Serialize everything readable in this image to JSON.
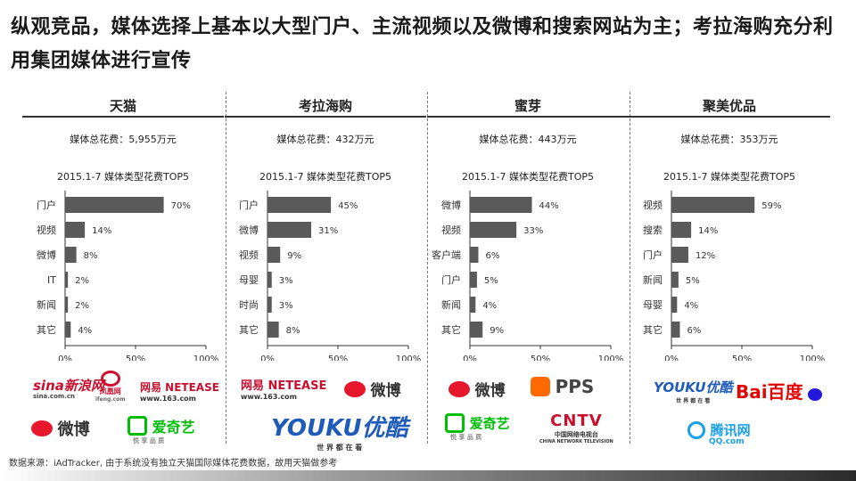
{
  "title": "纵观竞品，媒体选择上基本以大型门户、主流视频以及微博和搜索网站为主；考拉海购充分利用集团媒体进行宣传",
  "chart_title": "2015.1-7 媒体类型花费TOP5",
  "chart_data": [
    {
      "type": "bar",
      "name": "天猫",
      "total": "媒体总花费：5,955万元",
      "title": "2015.1-7 媒体类型花费TOP5",
      "categories": [
        "门户",
        "视频",
        "微博",
        "IT",
        "新闻",
        "其它"
      ],
      "values": [
        70,
        14,
        8,
        2,
        2,
        4
      ],
      "value_labels": [
        "70%",
        "14%",
        "8%",
        "2%",
        "2%",
        "4%"
      ],
      "xlim": [
        0,
        100
      ],
      "ticks": [
        "0%",
        "50%",
        "100%"
      ],
      "grid": false
    },
    {
      "type": "bar",
      "name": "考拉海购",
      "total": "媒体总花费：432万元",
      "title": "2015.1-7 媒体类型花费TOP5",
      "categories": [
        "门户",
        "微博",
        "视频",
        "母婴",
        "时尚",
        "其它"
      ],
      "values": [
        45,
        31,
        9,
        3,
        3,
        8
      ],
      "value_labels": [
        "45%",
        "31%",
        "9%",
        "3%",
        "3%",
        "8%"
      ],
      "xlim": [
        0,
        100
      ],
      "ticks": [
        "0%",
        "50%",
        "100%"
      ],
      "grid": false
    },
    {
      "type": "bar",
      "name": "蜜芽",
      "total": "媒体总花费：443万元",
      "title": "2015.1-7 媒体类型花费TOP5",
      "categories": [
        "微博",
        "视频",
        "客户端",
        "门户",
        "新闻",
        "其它"
      ],
      "values": [
        44,
        33,
        6,
        5,
        4,
        9
      ],
      "value_labels": [
        "44%",
        "33%",
        "6%",
        "5%",
        "4%",
        "9%"
      ],
      "xlim": [
        0,
        100
      ],
      "ticks": [
        "0%",
        "50%",
        "100%"
      ],
      "grid": false
    },
    {
      "type": "bar",
      "name": "聚美优品",
      "total": "媒体总花费：353万元",
      "title": "2015.1-7 媒体类型花费TOP5",
      "categories": [
        "视频",
        "搜索",
        "门户",
        "新闻",
        "母婴",
        "其它"
      ],
      "values": [
        59,
        14,
        12,
        5,
        4,
        6
      ],
      "value_labels": [
        "59%",
        "14%",
        "12%",
        "5%",
        "4%",
        "6%"
      ],
      "xlim": [
        0,
        100
      ],
      "ticks": [
        "0%",
        "50%",
        "100%"
      ],
      "grid": false
    }
  ],
  "bar_color": "#5a5a5a",
  "logos": {
    "tmall": {
      "sina": "sina新浪网",
      "sina_url": "sina.com.cn",
      "ifeng": "凤凰网",
      "ifeng_url": "ifeng.com",
      "netease": "网易 NETEASE",
      "netease_url": "www.163.com",
      "weibo": "微博",
      "iqiyi": "爱奇艺",
      "iqiyi_sub": "悦 享 品 质"
    },
    "kaola": {
      "netease": "网易 NETEASE",
      "netease_url": "www.163.com",
      "weibo": "微博",
      "youku": "YOUKU优酷",
      "youku_sub": "世 界 都 在 看"
    },
    "mia": {
      "weibo": "微博",
      "pps": "PPS",
      "iqiyi": "爱奇艺",
      "iqiyi_sub": "悦 享 品 质",
      "cntv": "CNTV",
      "cntv_sub": "中国网络电视台",
      "cntv_en": "CHINA NETWORK TELEVISION"
    },
    "jumei": {
      "youku": "YOUKU优酷",
      "youku_sub": "世 界 都 在 看",
      "baidu": "Bai百度",
      "baidu_du": "du",
      "tencent": "腾讯网",
      "tencent_url": "QQ.com"
    }
  },
  "source": "数据来源：iAdTracker, 由于系统没有独立天猫国际媒体花费数据，故用天猫做参考"
}
